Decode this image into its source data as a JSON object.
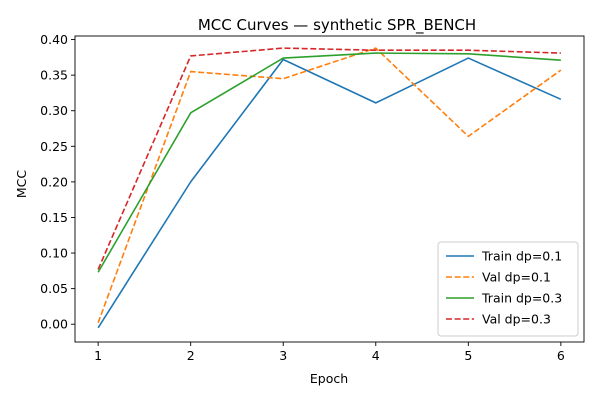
{
  "chart_data": {
    "type": "line",
    "title": "MCC Curves — synthetic SPR_BENCH",
    "xlabel": "Epoch",
    "ylabel": "MCC",
    "x": [
      1,
      2,
      3,
      4,
      5,
      6
    ],
    "xlim": [
      0.75,
      6.25
    ],
    "ylim": [
      -0.025,
      0.405
    ],
    "xticks": [
      1,
      2,
      3,
      4,
      5,
      6
    ],
    "yticks": [
      0.0,
      0.05,
      0.1,
      0.15,
      0.2,
      0.25,
      0.3,
      0.35,
      0.4
    ],
    "ytick_labels": [
      "0.00",
      "0.05",
      "0.10",
      "0.15",
      "0.20",
      "0.25",
      "0.30",
      "0.35",
      "0.40"
    ],
    "grid": false,
    "legend_position": "lower-right",
    "series": [
      {
        "name": "Train dp=0.1",
        "color": "#1f77b4",
        "dash": "solid",
        "values": [
          -0.005,
          0.2,
          0.372,
          0.311,
          0.374,
          0.316
        ]
      },
      {
        "name": "Val dp=0.1",
        "color": "#ff7f0e",
        "dash": "dashed",
        "values": [
          0.002,
          0.355,
          0.345,
          0.388,
          0.264,
          0.357
        ]
      },
      {
        "name": "Train dp=0.3",
        "color": "#2ca02c",
        "dash": "solid",
        "values": [
          0.073,
          0.297,
          0.374,
          0.381,
          0.38,
          0.371
        ]
      },
      {
        "name": "Val dp=0.3",
        "color": "#d62728",
        "dash": "dashed",
        "values": [
          0.077,
          0.377,
          0.388,
          0.385,
          0.385,
          0.381
        ]
      }
    ]
  }
}
